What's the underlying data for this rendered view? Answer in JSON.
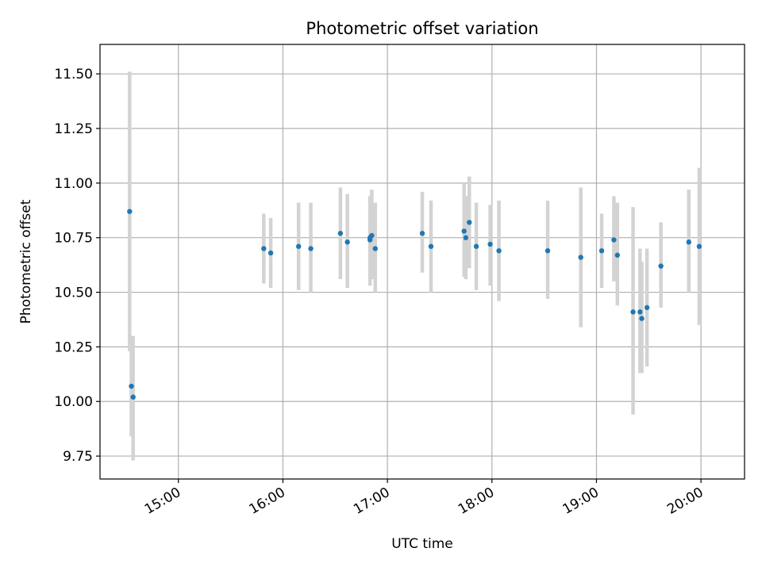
{
  "chart_data": {
    "type": "scatter",
    "title": "Photometric offset variation",
    "xlabel": "UTC time",
    "ylabel": "Photometric offset",
    "xlim": [
      "14:15",
      "20:25"
    ],
    "ylim": [
      9.645,
      11.635
    ],
    "grid": true,
    "x_ticks": [
      "15:00",
      "16:00",
      "17:00",
      "18:00",
      "19:00",
      "20:00"
    ],
    "y_ticks": [
      "9.75",
      "10.00",
      "10.25",
      "10.50",
      "10.75",
      "11.00",
      "11.25",
      "11.50"
    ],
    "point_color": "#1f77b4",
    "errorbar_color": "#d3d3d3",
    "points": [
      {
        "time": "14:32",
        "offset": 10.87,
        "low": 10.23,
        "high": 11.51
      },
      {
        "time": "14:33",
        "offset": 10.07,
        "low": 9.84,
        "high": 10.3
      },
      {
        "time": "14:34",
        "offset": 10.02,
        "low": 9.73,
        "high": 10.3
      },
      {
        "time": "15:49",
        "offset": 10.7,
        "low": 10.54,
        "high": 10.86
      },
      {
        "time": "15:53",
        "offset": 10.68,
        "low": 10.52,
        "high": 10.84
      },
      {
        "time": "16:09",
        "offset": 10.71,
        "low": 10.51,
        "high": 10.91
      },
      {
        "time": "16:16",
        "offset": 10.7,
        "low": 10.5,
        "high": 10.91
      },
      {
        "time": "16:33",
        "offset": 10.77,
        "low": 10.56,
        "high": 10.98
      },
      {
        "time": "16:37",
        "offset": 10.73,
        "low": 10.52,
        "high": 10.95
      },
      {
        "time": "16:50",
        "offset": 10.75,
        "low": 10.56,
        "high": 10.94
      },
      {
        "time": "16:50",
        "offset": 10.74,
        "low": 10.53,
        "high": 10.94
      },
      {
        "time": "16:51",
        "offset": 10.76,
        "low": 10.56,
        "high": 10.97
      },
      {
        "time": "16:53",
        "offset": 10.7,
        "low": 10.5,
        "high": 10.91
      },
      {
        "time": "17:20",
        "offset": 10.77,
        "low": 10.59,
        "high": 10.96
      },
      {
        "time": "17:25",
        "offset": 10.71,
        "low": 10.5,
        "high": 10.92
      },
      {
        "time": "17:44",
        "offset": 10.78,
        "low": 10.57,
        "high": 11.0
      },
      {
        "time": "17:45",
        "offset": 10.75,
        "low": 10.56,
        "high": 10.94
      },
      {
        "time": "17:47",
        "offset": 10.82,
        "low": 10.61,
        "high": 11.03
      },
      {
        "time": "17:51",
        "offset": 10.71,
        "low": 10.51,
        "high": 10.91
      },
      {
        "time": "17:59",
        "offset": 10.72,
        "low": 10.53,
        "high": 10.9
      },
      {
        "time": "18:04",
        "offset": 10.69,
        "low": 10.46,
        "high": 10.92
      },
      {
        "time": "18:32",
        "offset": 10.69,
        "low": 10.47,
        "high": 10.92
      },
      {
        "time": "18:51",
        "offset": 10.66,
        "low": 10.34,
        "high": 10.98
      },
      {
        "time": "19:03",
        "offset": 10.69,
        "low": 10.52,
        "high": 10.86
      },
      {
        "time": "19:10",
        "offset": 10.74,
        "low": 10.55,
        "high": 10.94
      },
      {
        "time": "19:12",
        "offset": 10.67,
        "low": 10.44,
        "high": 10.91
      },
      {
        "time": "19:21",
        "offset": 10.41,
        "low": 9.94,
        "high": 10.89
      },
      {
        "time": "19:25",
        "offset": 10.41,
        "low": 10.13,
        "high": 10.7
      },
      {
        "time": "19:26",
        "offset": 10.38,
        "low": 10.13,
        "high": 10.64
      },
      {
        "time": "19:29",
        "offset": 10.43,
        "low": 10.16,
        "high": 10.7
      },
      {
        "time": "19:37",
        "offset": 10.62,
        "low": 10.43,
        "high": 10.82
      },
      {
        "time": "19:53",
        "offset": 10.73,
        "low": 10.5,
        "high": 10.97
      },
      {
        "time": "19:59",
        "offset": 10.71,
        "low": 10.35,
        "high": 11.07
      }
    ]
  }
}
